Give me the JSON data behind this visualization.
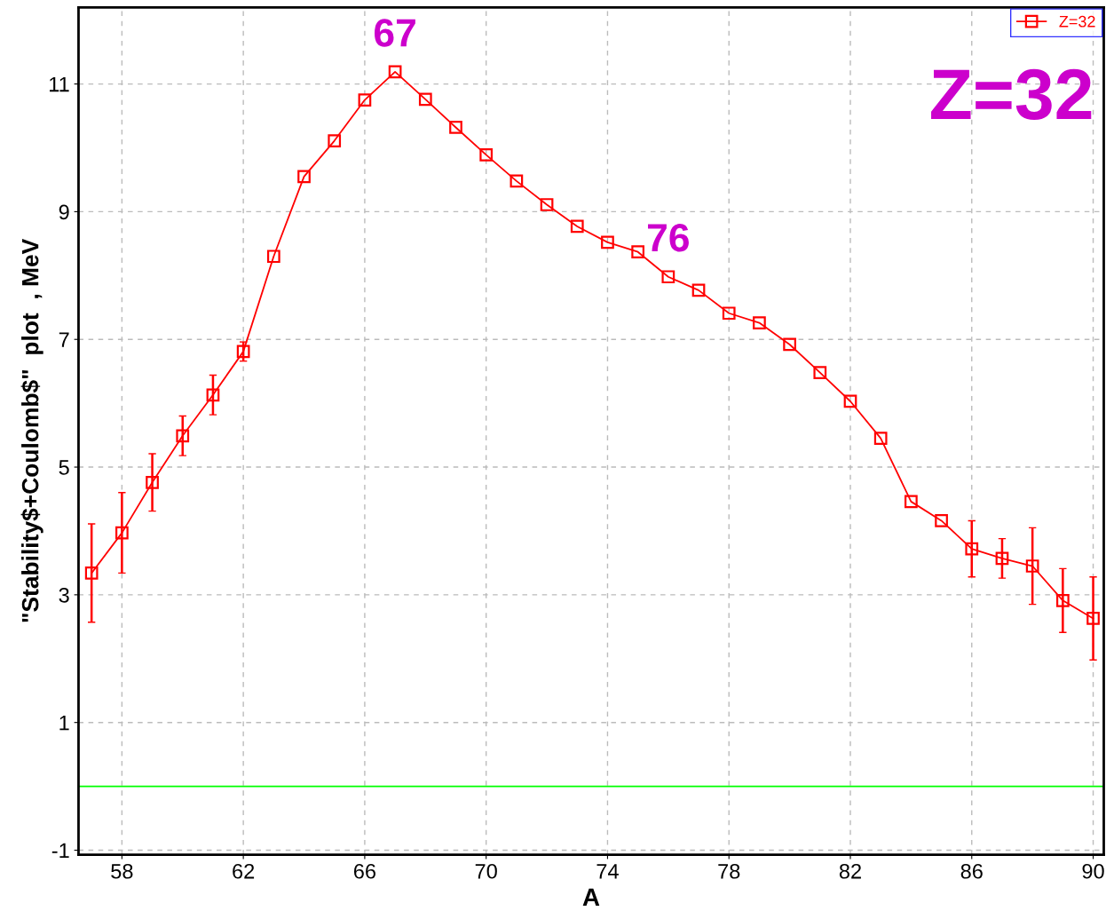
{
  "chart_data": {
    "type": "line",
    "xlabel": "A",
    "ylabel": "\"Stability$+Coulomb$\"  plot  , MeV",
    "x": [
      57,
      58,
      59,
      60,
      61,
      62,
      63,
      64,
      65,
      66,
      67,
      68,
      69,
      70,
      71,
      72,
      73,
      74,
      75,
      76,
      77,
      78,
      79,
      80,
      81,
      82,
      83,
      84,
      85,
      86,
      87,
      88,
      89,
      90
    ],
    "series": [
      {
        "name": "Z=32",
        "color": "#ff0000",
        "values": [
          3.34,
          3.97,
          4.76,
          5.49,
          6.13,
          6.81,
          8.3,
          9.55,
          10.11,
          10.75,
          11.19,
          10.76,
          10.32,
          9.89,
          9.48,
          9.11,
          8.77,
          8.52,
          8.37,
          7.98,
          7.77,
          7.41,
          7.26,
          6.92,
          6.48,
          6.03,
          5.45,
          4.46,
          4.16,
          3.72,
          3.57,
          3.45,
          2.91,
          2.63
        ],
        "errors": [
          0.77,
          0.63,
          0.45,
          0.31,
          0.31,
          0.15,
          null,
          null,
          null,
          null,
          null,
          null,
          null,
          null,
          null,
          null,
          null,
          null,
          null,
          null,
          null,
          null,
          null,
          null,
          null,
          null,
          null,
          null,
          null,
          0.44,
          0.31,
          0.6,
          0.5,
          0.65
        ]
      }
    ],
    "marker": "square",
    "line_style": "solid",
    "xlim": [
      56.57,
      90.35
    ],
    "ylim": [
      -1.07,
      12.2
    ],
    "xticks": [
      58,
      62,
      66,
      70,
      74,
      78,
      82,
      86,
      90
    ],
    "yticks": [
      -1,
      1,
      3,
      5,
      7,
      9,
      11
    ],
    "grid": true,
    "legend": "top right",
    "ref_lines": [
      {
        "axis": "y",
        "value": 0,
        "color": "#00ff00"
      }
    ],
    "annotations": [
      {
        "text": "67",
        "x": 67,
        "y": 11.19
      },
      {
        "text": "76",
        "x": 76,
        "y": 7.98
      },
      "Z=32"
    ]
  }
}
